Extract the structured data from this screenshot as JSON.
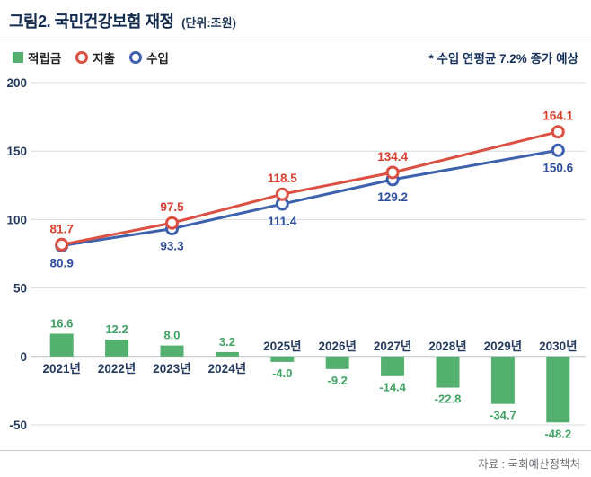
{
  "header": {
    "title": "그림2. 국민건강보험 재정",
    "unit": "(단위:조원)"
  },
  "legend": [
    {
      "label": "적립금",
      "type": "square",
      "color": "#54b06e"
    },
    {
      "label": "지출",
      "type": "ring",
      "color": "#dc5044"
    },
    {
      "label": "수입",
      "type": "ring",
      "color": "#3e61ad"
    }
  ],
  "annotation": "* 수입 연평균 7.2% 증가 예상",
  "source": "자료 : 국회예산정책처",
  "chart_data": {
    "type": "bar+line",
    "title": "국민건강보험 재정 (단위:조원)",
    "categories": [
      "2021년",
      "2022년",
      "2023년",
      "2024년",
      "2025년",
      "2026년",
      "2027년",
      "2028년",
      "2029년",
      "2030년"
    ],
    "series": [
      {
        "name": "적립금",
        "type": "bar",
        "color": "#54b06e",
        "label_color": "#3fa263",
        "values": [
          16.6,
          12.2,
          8.0,
          3.2,
          -4.0,
          -9.2,
          -14.4,
          -22.8,
          -34.7,
          -48.2
        ]
      },
      {
        "name": "수입",
        "type": "line",
        "color": "#3e61ad",
        "label_color": "#2f4f9e",
        "label_side": "below",
        "points": [
          {
            "i": 0,
            "v": 80.9
          },
          {
            "i": 2,
            "v": 93.3
          },
          {
            "i": 4,
            "v": 111.4
          },
          {
            "i": 6,
            "v": 129.2
          },
          {
            "i": 9,
            "v": 150.6
          }
        ]
      },
      {
        "name": "지출",
        "type": "line",
        "color": "#dc5044",
        "label_color": "#d8402f",
        "label_side": "above",
        "points": [
          {
            "i": 0,
            "v": 81.7
          },
          {
            "i": 2,
            "v": 97.5
          },
          {
            "i": 4,
            "v": 118.5
          },
          {
            "i": 6,
            "v": 134.4
          },
          {
            "i": 9,
            "v": 164.1
          }
        ]
      }
    ],
    "ylim": [
      -50,
      200
    ],
    "yticks": [
      200,
      150,
      100,
      50,
      0,
      -50
    ],
    "grid": true,
    "axis_color": "#243a5e",
    "gridline_color": "#d9dde1",
    "legend_position": "top-left",
    "annotation": "* 수입 연평균 7.2% 증가 예상"
  }
}
